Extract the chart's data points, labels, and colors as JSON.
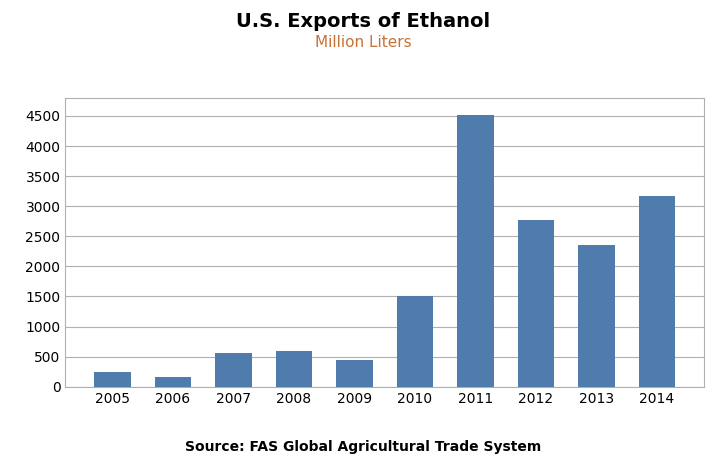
{
  "title": "U.S. Exports of Ethanol",
  "subtitle": "Million Liters",
  "subtitle_color": "#C87137",
  "source_text": "Source: FAS Global Agricultural Trade System",
  "categories": [
    "2005",
    "2006",
    "2007",
    "2008",
    "2009",
    "2010",
    "2011",
    "2012",
    "2013",
    "2014"
  ],
  "values": [
    250,
    155,
    565,
    595,
    445,
    1505,
    4510,
    2775,
    2350,
    3170
  ],
  "bar_color": "#4F7CAC",
  "ylim": [
    0,
    4800
  ],
  "yticks": [
    0,
    500,
    1000,
    1500,
    2000,
    2500,
    3000,
    3500,
    4000,
    4500
  ],
  "title_fontsize": 14,
  "subtitle_fontsize": 11,
  "tick_fontsize": 10,
  "source_fontsize": 10,
  "background_color": "#ffffff",
  "plot_bg_color": "#ffffff",
  "grid_color": "#b0b0b0",
  "spine_color": "#b0b0b0"
}
